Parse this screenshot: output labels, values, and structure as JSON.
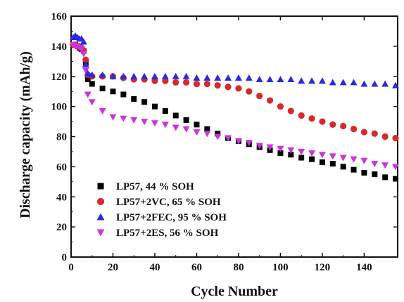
{
  "chart_data": {
    "type": "scatter",
    "title": "",
    "xlabel": "Cycle Number",
    "ylabel": "Discharge capacity (mAh/g)",
    "xlim": [
      0,
      156
    ],
    "ylim": [
      0,
      160
    ],
    "xticks": [
      "0",
      "20",
      "40",
      "60",
      "80",
      "100",
      "120",
      "140"
    ],
    "yticks": [
      "0",
      "20",
      "40",
      "60",
      "80",
      "100",
      "120",
      "140",
      "160"
    ],
    "grid": false,
    "legend_position": "lower-left",
    "series": [
      {
        "name": "LP57, 44 % SOH",
        "marker": "square",
        "color": "#000000",
        "x": [
          1,
          2,
          3,
          4,
          5,
          6,
          7,
          8,
          10,
          15,
          20,
          25,
          30,
          35,
          40,
          45,
          50,
          55,
          60,
          65,
          70,
          75,
          80,
          85,
          90,
          95,
          100,
          105,
          110,
          115,
          120,
          125,
          130,
          135,
          140,
          145,
          150,
          155
        ],
        "y": [
          141,
          141,
          140,
          139,
          138,
          137,
          129,
          118,
          115,
          112,
          110,
          108,
          105,
          103,
          100,
          97,
          94,
          91,
          88,
          85,
          82,
          79,
          77,
          75,
          73,
          71,
          69,
          68,
          66,
          65,
          63,
          62,
          60,
          58,
          56,
          55,
          53,
          52
        ]
      },
      {
        "name": "LP57+2VC, 65 % SOH",
        "marker": "circle",
        "color": "#d62a2a",
        "x": [
          1,
          2,
          3,
          4,
          5,
          6,
          7,
          8,
          10,
          15,
          20,
          25,
          30,
          35,
          40,
          45,
          50,
          55,
          60,
          65,
          70,
          75,
          80,
          85,
          90,
          95,
          100,
          105,
          110,
          115,
          120,
          125,
          130,
          135,
          140,
          145,
          150,
          155
        ],
        "y": [
          141,
          141,
          140,
          140,
          139,
          137,
          131,
          121,
          120,
          120,
          120,
          119,
          118,
          118,
          117,
          117,
          116,
          116,
          115,
          115,
          114,
          113,
          112,
          110,
          107,
          104,
          100,
          97,
          94,
          92,
          90,
          88,
          87,
          85,
          83,
          82,
          80,
          79
        ]
      },
      {
        "name": "LP57+2FEC, 95 % SOH",
        "marker": "triangle-up",
        "color": "#2a2ae0",
        "x": [
          1,
          2,
          3,
          4,
          5,
          6,
          7,
          8,
          10,
          15,
          20,
          25,
          30,
          35,
          40,
          45,
          50,
          55,
          60,
          65,
          70,
          75,
          80,
          85,
          90,
          95,
          100,
          105,
          110,
          115,
          120,
          125,
          130,
          135,
          140,
          145,
          150,
          155
        ],
        "y": [
          146,
          147,
          146,
          145,
          145,
          143,
          128,
          122,
          121,
          121,
          120,
          120,
          120,
          120,
          120,
          120,
          120,
          120,
          119,
          119,
          119,
          119,
          119,
          119,
          118,
          118,
          118,
          118,
          117,
          117,
          117,
          116,
          116,
          116,
          115,
          115,
          115,
          114
        ]
      },
      {
        "name": "LP57+2ES, 56 % SOH",
        "marker": "triangle-down",
        "color": "#cc33dd",
        "x": [
          1,
          2,
          3,
          4,
          5,
          6,
          7,
          8,
          10,
          15,
          20,
          25,
          30,
          35,
          40,
          45,
          50,
          55,
          60,
          65,
          70,
          75,
          80,
          85,
          90,
          95,
          100,
          105,
          110,
          115,
          120,
          125,
          130,
          135,
          140,
          145,
          150,
          155
        ],
        "y": [
          141,
          140,
          140,
          139,
          138,
          135,
          124,
          108,
          103,
          97,
          93,
          92,
          91,
          90,
          89,
          88,
          86,
          85,
          83,
          82,
          80,
          79,
          77,
          76,
          74,
          73,
          72,
          71,
          70,
          69,
          68,
          67,
          66,
          65,
          64,
          62,
          61,
          60
        ]
      }
    ]
  }
}
